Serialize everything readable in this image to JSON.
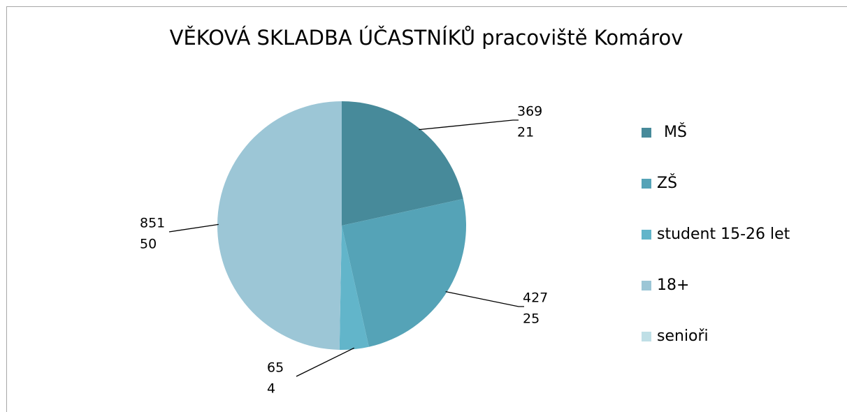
{
  "chart_data": {
    "type": "pie",
    "title": "VĚKOVÁ SKLADBA  ÚČASTNÍKŮ  pracoviště Komárov",
    "categories": [
      "MŠ",
      "ZŠ",
      "student 15-26 let",
      "18+",
      "senioři"
    ],
    "values": [
      369,
      427,
      65,
      851,
      null
    ],
    "percentages": [
      21,
      25,
      4,
      50,
      null
    ],
    "colors": [
      "#478a9a",
      "#55a3b7",
      "#62b5ca",
      "#9cc6d6",
      "#bfdfe6"
    ],
    "legend": "right"
  }
}
